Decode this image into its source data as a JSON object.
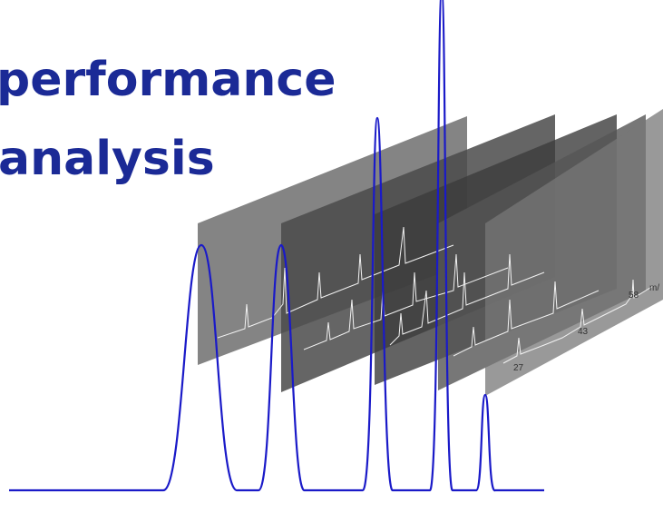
{
  "title": {
    "line1": "performance",
    "line2": "analysis"
  },
  "spectrum_labels": [
    "58",
    "43",
    "27",
    "m/"
  ]
}
